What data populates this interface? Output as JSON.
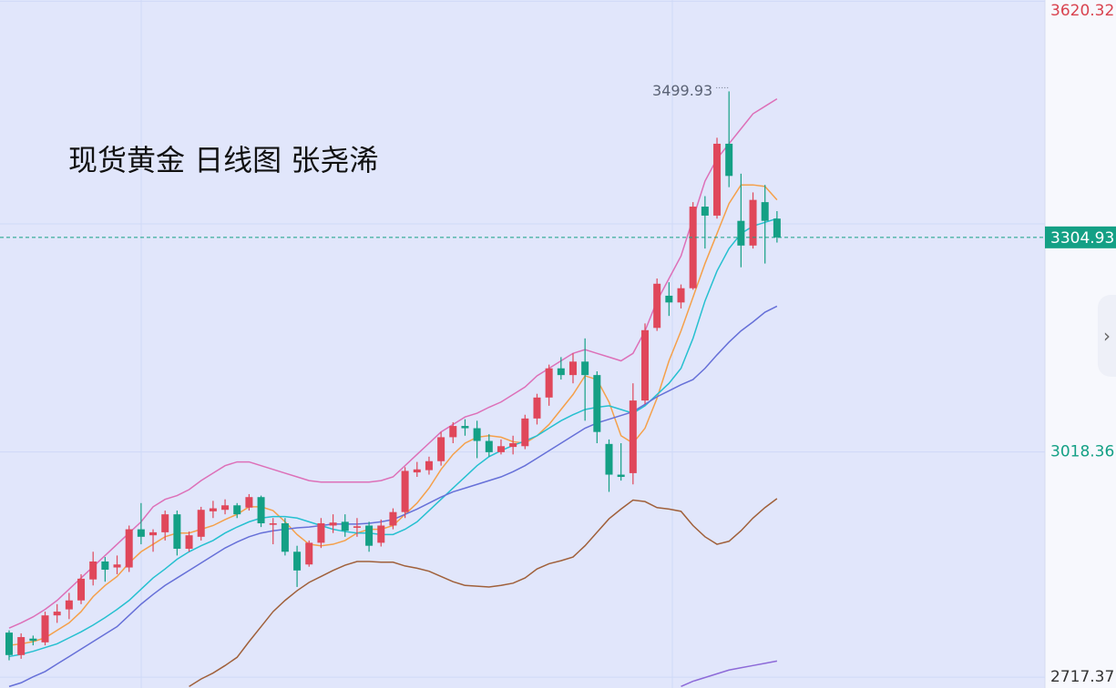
{
  "chart_data": {
    "type": "candlestick",
    "title": "现货黄金 日线图 张尧浠",
    "ylim": [
      2703,
      3622
    ],
    "yticks": [
      3620.32,
      3018.36,
      2717.37
    ],
    "ytick_colors": [
      "#d9434f",
      "#14a085",
      "#333333"
    ],
    "current_price": 3304.93,
    "up_color": "#e0475a",
    "down_color": "#14a085",
    "open": [
      2777,
      2747,
      2769,
      2764,
      2800,
      2808,
      2820,
      2848,
      2872,
      2864,
      2864,
      2915,
      2907,
      2911,
      2935,
      2889,
      2905,
      2939,
      2941,
      2947,
      2944,
      2958,
      2921,
      2923,
      2885,
      2868,
      2897,
      2920,
      2925,
      2917,
      2920,
      2897,
      2920,
      2938,
      2991,
      2994,
      3006,
      3038,
      3053,
      3050,
      3033,
      3018,
      3025,
      3026,
      3063,
      3091,
      3130,
      3121,
      3139,
      3121,
      3029,
      2988,
      2990,
      3087,
      3184,
      3227,
      3218,
      3237,
      3346,
      3334,
      3430,
      3327,
      3294,
      3352,
      3330
    ],
    "high": [
      2780,
      2776,
      2773,
      2805,
      2815,
      2830,
      2855,
      2885,
      2878,
      2880,
      2920,
      2950,
      2915,
      2940,
      2940,
      2912,
      2945,
      2953,
      2955,
      2950,
      2962,
      2960,
      2930,
      2930,
      2893,
      2900,
      2930,
      2935,
      2935,
      2930,
      2925,
      2928,
      2943,
      2998,
      3005,
      3012,
      3045,
      3058,
      3062,
      3060,
      3042,
      3035,
      3040,
      3068,
      3096,
      3135,
      3145,
      3150,
      3170,
      3126,
      3035,
      3030,
      3110,
      3190,
      3250,
      3245,
      3242,
      3352,
      3360,
      3438,
      3499.93,
      3390,
      3365,
      3375,
      3340
    ],
    "low": [
      2740,
      2742,
      2760,
      2760,
      2790,
      2795,
      2815,
      2840,
      2845,
      2855,
      2858,
      2895,
      2885,
      2900,
      2880,
      2885,
      2900,
      2930,
      2935,
      2930,
      2940,
      2918,
      2895,
      2880,
      2838,
      2865,
      2890,
      2910,
      2905,
      2905,
      2885,
      2892,
      2915,
      2930,
      2985,
      2988,
      3000,
      3030,
      3040,
      3010,
      3012,
      3015,
      3015,
      3022,
      3055,
      3080,
      3115,
      3110,
      3060,
      3030,
      2965,
      2980,
      2975,
      3082,
      3180,
      3200,
      3210,
      3235,
      3290,
      3330,
      3372,
      3265,
      3290,
      3270,
      3298
    ],
    "close": [
      2747,
      2771,
      2766,
      2800,
      2805,
      2820,
      2849,
      2872,
      2861,
      2868,
      2915,
      2905,
      2911,
      2935,
      2889,
      2907,
      2941,
      2943,
      2947,
      2935,
      2958,
      2923,
      2923,
      2885,
      2860,
      2897,
      2923,
      2924,
      2913,
      2919,
      2893,
      2920,
      2938,
      2993,
      2995,
      3006,
      3038,
      3053,
      3050,
      3033,
      3018,
      3026,
      3030,
      3063,
      3091,
      3130,
      3121,
      3139,
      3121,
      3045,
      2988,
      2985,
      3087,
      3181,
      3243,
      3218,
      3237,
      3346,
      3334,
      3430,
      3387,
      3294,
      3355,
      3327,
      3304.93
    ],
    "series": [
      {
        "color": "#dd70b8",
        "values": [
          2783,
          2790,
          2798,
          2808,
          2820,
          2835,
          2850,
          2865,
          2880,
          2895,
          2910,
          2925,
          2945,
          2955,
          2960,
          2968,
          2980,
          2990,
          3000,
          3005,
          3005,
          3000,
          2995,
          2990,
          2985,
          2980,
          2978,
          2978,
          2978,
          2978,
          2978,
          2980,
          2985,
          3000,
          3015,
          3030,
          3045,
          3055,
          3065,
          3070,
          3078,
          3085,
          3095,
          3105,
          3120,
          3130,
          3140,
          3150,
          3155,
          3150,
          3145,
          3140,
          3150,
          3180,
          3220,
          3250,
          3280,
          3330,
          3380,
          3410,
          3430,
          3450,
          3470,
          3480,
          3490
        ]
      },
      {
        "color": "#f5a04a",
        "values": [
          2760,
          2762,
          2765,
          2770,
          2780,
          2790,
          2805,
          2825,
          2840,
          2852,
          2870,
          2885,
          2895,
          2905,
          2910,
          2910,
          2915,
          2920,
          2928,
          2935,
          2945,
          2945,
          2940,
          2925,
          2908,
          2895,
          2893,
          2895,
          2900,
          2910,
          2915,
          2915,
          2920,
          2935,
          2950,
          2970,
          2995,
          3015,
          3030,
          3038,
          3040,
          3038,
          3032,
          3030,
          3040,
          3055,
          3075,
          3095,
          3120,
          3115,
          3085,
          3040,
          3030,
          3050,
          3090,
          3140,
          3180,
          3225,
          3270,
          3310,
          3350,
          3375,
          3375,
          3373,
          3355
        ]
      },
      {
        "color": "#26c0d0",
        "values": [
          2745,
          2748,
          2752,
          2757,
          2762,
          2770,
          2778,
          2787,
          2797,
          2808,
          2820,
          2835,
          2850,
          2862,
          2875,
          2885,
          2893,
          2900,
          2910,
          2918,
          2925,
          2930,
          2932,
          2932,
          2930,
          2925,
          2920,
          2915,
          2912,
          2910,
          2910,
          2908,
          2908,
          2915,
          2925,
          2940,
          2955,
          2970,
          2985,
          3000,
          3012,
          3020,
          3027,
          3033,
          3040,
          3050,
          3060,
          3068,
          3075,
          3078,
          3080,
          3075,
          3070,
          3080,
          3095,
          3110,
          3130,
          3170,
          3220,
          3260,
          3290,
          3310,
          3320,
          3325,
          3330
        ]
      },
      {
        "color": "#6670d8",
        "values": [
          2705,
          2710,
          2718,
          2725,
          2735,
          2745,
          2755,
          2765,
          2775,
          2785,
          2800,
          2815,
          2828,
          2840,
          2850,
          2860,
          2870,
          2880,
          2890,
          2898,
          2905,
          2910,
          2913,
          2915,
          2917,
          2918,
          2920,
          2922,
          2922,
          2922,
          2923,
          2925,
          2928,
          2935,
          2942,
          2950,
          2958,
          2965,
          2970,
          2975,
          2980,
          2985,
          2992,
          3000,
          3010,
          3020,
          3030,
          3040,
          3050,
          3057,
          3062,
          3067,
          3072,
          3082,
          3092,
          3100,
          3108,
          3115,
          3130,
          3148,
          3165,
          3180,
          3192,
          3205,
          3213
        ]
      },
      {
        "color": "#a0603a",
        "values": [
          null,
          null,
          null,
          null,
          null,
          null,
          null,
          null,
          null,
          null,
          null,
          null,
          null,
          null,
          null,
          2705,
          2715,
          2723,
          2733,
          2744,
          2765,
          2785,
          2805,
          2820,
          2833,
          2844,
          2852,
          2860,
          2867,
          2872,
          2872,
          2871,
          2871,
          2866,
          2863,
          2859,
          2852,
          2845,
          2840,
          2839,
          2838,
          2840,
          2843,
          2850,
          2862,
          2869,
          2873,
          2878,
          2893,
          2911,
          2929,
          2942,
          2954,
          2952,
          2944,
          2942,
          2939,
          2920,
          2905,
          2895,
          2899,
          2913,
          2930,
          2944,
          2956
        ]
      },
      {
        "color": "#8d6ad8",
        "values": [
          null,
          null,
          null,
          null,
          null,
          null,
          null,
          null,
          null,
          null,
          null,
          null,
          null,
          null,
          null,
          null,
          null,
          null,
          null,
          null,
          null,
          null,
          null,
          null,
          null,
          null,
          null,
          null,
          null,
          null,
          null,
          null,
          null,
          null,
          null,
          null,
          null,
          null,
          null,
          null,
          null,
          null,
          null,
          null,
          null,
          null,
          null,
          null,
          null,
          null,
          null,
          null,
          null,
          null,
          null,
          null,
          2705,
          2712,
          2717,
          2722,
          2727,
          2730,
          2733,
          2736,
          2739
        ]
      }
    ]
  }
}
